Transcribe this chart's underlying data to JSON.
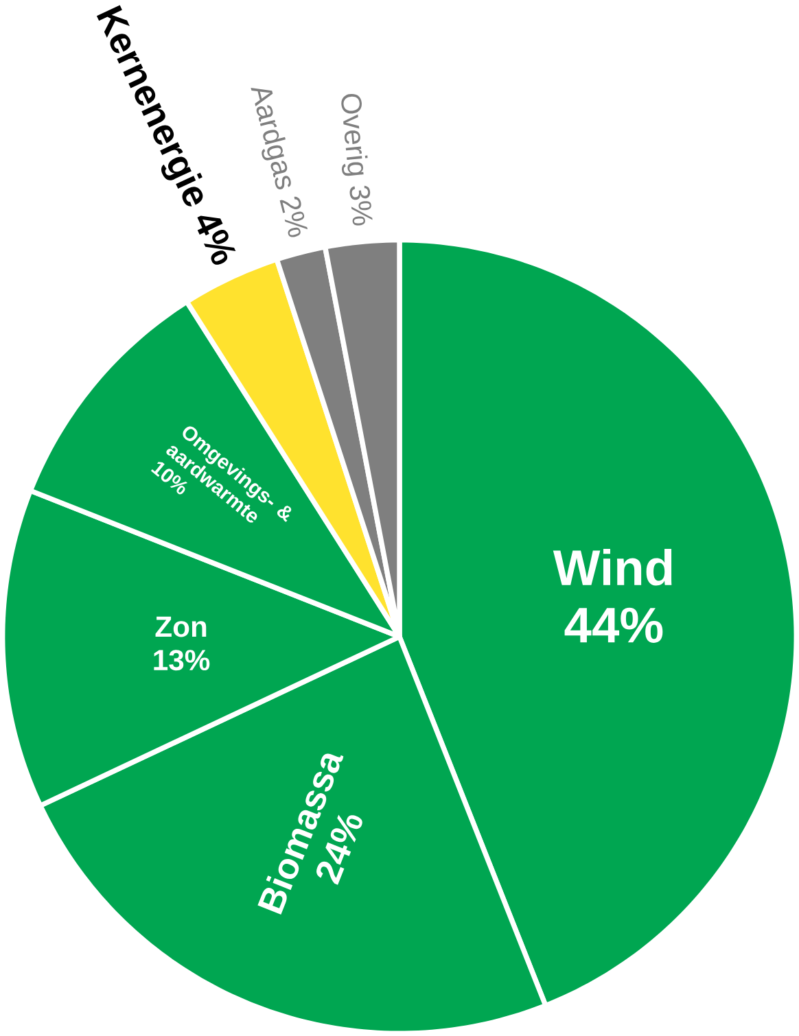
{
  "chart_data": {
    "type": "pie",
    "categories": [
      "Wind",
      "Biomassa",
      "Zon",
      "Omgevings- & aardwarmte",
      "Kernenergie",
      "Aardgas",
      "Overig"
    ],
    "values": [
      44,
      24,
      13,
      10,
      4,
      2,
      3
    ],
    "value_labels": [
      "44%",
      "24%",
      "13%",
      "10%",
      "4%",
      "2%",
      "3%"
    ],
    "colors": [
      "#00a651",
      "#00a651",
      "#00a651",
      "#00a651",
      "#ffe22e",
      "#7f7f7f",
      "#7f7f7f"
    ]
  }
}
